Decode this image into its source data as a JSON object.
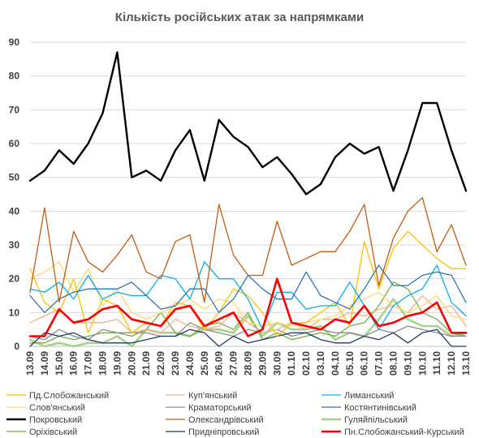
{
  "chart_data": {
    "type": "line",
    "title": "Кількість російських атак за напрямками",
    "xlabel": "",
    "ylabel": "",
    "ylim": [
      0,
      90
    ],
    "yticks": [
      0,
      10,
      20,
      30,
      40,
      50,
      60,
      70,
      80,
      90
    ],
    "grid": true,
    "legend_position": "bottom",
    "x": [
      "13.09",
      "14.09",
      "15.09",
      "16.09",
      "17.09",
      "18.09",
      "19.09",
      "20.09",
      "21.09",
      "22.09",
      "23.09",
      "24.09",
      "25.09",
      "26.09",
      "27.09",
      "28.09",
      "29.09",
      "30.09",
      "01.10",
      "02.10",
      "03.10",
      "04.10",
      "05.10",
      "06.10",
      "07.10",
      "08.10",
      "09.10",
      "10.10",
      "11.10",
      "12.10",
      "13.10"
    ],
    "series": [
      {
        "name": "Пд.Слобожанський",
        "color": "#ffc000",
        "width": 1.3,
        "values": [
          23,
          13,
          10,
          20,
          4,
          14,
          12,
          4,
          7,
          6,
          13,
          12,
          5,
          10,
          17,
          15,
          10,
          3,
          7,
          7,
          10,
          13,
          6,
          31,
          17,
          29,
          34,
          30,
          26,
          23,
          23
        ]
      },
      {
        "name": "Куп'янський",
        "color": "#f4b183",
        "width": 1.3,
        "values": [
          7,
          9,
          11,
          7,
          7,
          7,
          8,
          4,
          5,
          4,
          8,
          6,
          5,
          6,
          10,
          7,
          4,
          5,
          7,
          5,
          8,
          8,
          10,
          9,
          11,
          12,
          10,
          15,
          11,
          12,
          6
        ]
      },
      {
        "name": "Лиманський",
        "color": "#00b0f0",
        "width": 1.3,
        "values": [
          17,
          16,
          19,
          14,
          21,
          14,
          16,
          15,
          15,
          21,
          20,
          14,
          25,
          20,
          20,
          14,
          5,
          16,
          16,
          11,
          12,
          12,
          19,
          12,
          5,
          12,
          15,
          17,
          24,
          13,
          9
        ]
      },
      {
        "name": "Слов'янський",
        "color": "#ffd966",
        "width": 1.3,
        "values": [
          20,
          22,
          25,
          16,
          23,
          12,
          17,
          10,
          8,
          10,
          12,
          14,
          11,
          14,
          13,
          7,
          6,
          7,
          6,
          7,
          8,
          9,
          12,
          14,
          16,
          12,
          10,
          12,
          15,
          9,
          8
        ]
      },
      {
        "name": "Краматорський",
        "color": "#8c8c8c",
        "width": 1.3,
        "values": [
          3,
          2,
          5,
          3,
          2,
          5,
          4,
          4,
          4,
          3,
          3,
          7,
          5,
          4,
          3,
          5,
          4,
          5,
          3,
          4,
          5,
          4,
          4,
          3,
          5,
          4,
          6,
          5,
          4,
          3,
          3
        ]
      },
      {
        "name": "Костянтинівський",
        "color": "#2e75b6",
        "width": 1.3,
        "values": [
          15,
          10,
          14,
          16,
          17,
          17,
          17,
          19,
          15,
          11,
          12,
          17,
          17,
          10,
          14,
          21,
          17,
          14,
          14,
          22,
          15,
          13,
          11,
          17,
          24,
          18,
          18,
          21,
          22,
          21,
          13
        ]
      },
      {
        "name": "Покровський",
        "color": "#000000",
        "width": 2.4,
        "values": [
          49,
          52,
          58,
          54,
          60,
          69,
          87,
          50,
          52,
          49,
          58,
          64,
          49,
          67,
          62,
          59,
          53,
          56,
          51,
          45,
          48,
          56,
          60,
          57,
          59,
          46,
          58,
          72,
          72,
          58,
          46
        ]
      },
      {
        "name": "Олександрівський",
        "color": "#c55a11",
        "width": 1.3,
        "values": [
          16,
          41,
          13,
          34,
          25,
          22,
          27,
          33,
          22,
          20,
          31,
          33,
          13,
          42,
          27,
          21,
          21,
          37,
          24,
          26,
          28,
          28,
          34,
          42,
          18,
          32,
          40,
          44,
          28,
          36,
          24
        ]
      },
      {
        "name": "Гуляйпільський",
        "color": "#a9d18e",
        "width": 2.6,
        "values": [
          2,
          0,
          1,
          0,
          1,
          1,
          3,
          0,
          5,
          4,
          4,
          3,
          5,
          5,
          4,
          9,
          3,
          7,
          5,
          5,
          6,
          2,
          4,
          3,
          8,
          14,
          8,
          6,
          6,
          3,
          4
        ]
      },
      {
        "name": "Оріхівський",
        "color": "#70ad47",
        "width": 1.3,
        "values": [
          1,
          1,
          3,
          2,
          3,
          4,
          4,
          3,
          5,
          10,
          4,
          3,
          6,
          7,
          5,
          10,
          2,
          4,
          2,
          3,
          4,
          3,
          6,
          7,
          12,
          19,
          17,
          10,
          8,
          4,
          3
        ]
      },
      {
        "name": "Придніпровський",
        "color": "#1f3864",
        "width": 1.3,
        "values": [
          0,
          4,
          3,
          4,
          2,
          1,
          1,
          1,
          2,
          3,
          3,
          5,
          4,
          0,
          3,
          1,
          2,
          3,
          4,
          4,
          2,
          1,
          1,
          3,
          2,
          4,
          1,
          4,
          5,
          0,
          0
        ]
      },
      {
        "name": "Пн.Слобожанський-Курський",
        "color": "#ff0000",
        "width": 2.6,
        "values": [
          3,
          3,
          11,
          7,
          8,
          11,
          12,
          8,
          7,
          6,
          11,
          12,
          6,
          8,
          10,
          3,
          5,
          20,
          7,
          6,
          5,
          8,
          7,
          12,
          6,
          7,
          9,
          10,
          13,
          4,
          4
        ]
      }
    ]
  }
}
